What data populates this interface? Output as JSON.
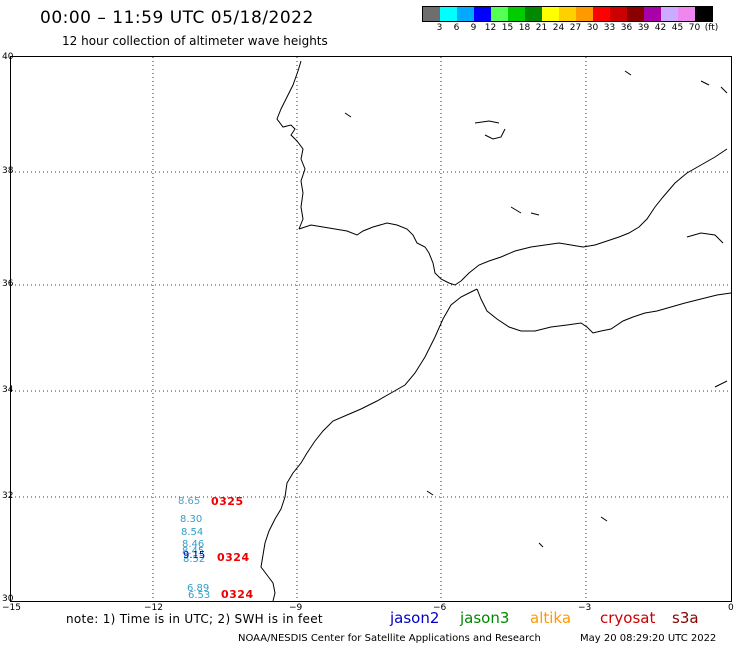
{
  "header": {
    "title": "00:00 – 11:59 UTC 05/18/2022",
    "subtitle": "12 hour collection of altimeter wave heights"
  },
  "colorbar": {
    "colors": [
      "#6e6e6e",
      "#00ffff",
      "#00aaff",
      "#0000ff",
      "#55ff55",
      "#00cc00",
      "#008800",
      "#ffff00",
      "#ffd000",
      "#ff9900",
      "#ff0000",
      "#cc0000",
      "#880000",
      "#aa00aa",
      "#ccaaff",
      "#ee88ee",
      "#000000"
    ],
    "labels": [
      "3",
      "6",
      "9",
      "12",
      "15",
      "18",
      "21",
      "24",
      "27",
      "30",
      "33",
      "36",
      "39",
      "42",
      "45",
      "70",
      "(ft)"
    ]
  },
  "axes": {
    "y_labels": [
      "40",
      "38",
      "36",
      "34",
      "32",
      "30"
    ],
    "x_labels": [
      "−15",
      "−12",
      "−9",
      "−6",
      "−3",
      "0"
    ]
  },
  "observations": {
    "jason3_values": [
      "8.65",
      "8.30",
      "8.54",
      "8.46",
      "8.45",
      "8.52",
      "6.89",
      "6.53"
    ],
    "jason2_value": "9.15",
    "cryosat_labels": [
      "0325",
      "0324",
      "0324"
    ]
  },
  "note": "note: 1) Time is in UTC; 2) SWH is in feet",
  "legend": [
    {
      "label": "jason2",
      "color": "#0000cc"
    },
    {
      "label": "jason3",
      "color": "#008800"
    },
    {
      "label": "altika",
      "color": "#ff9900"
    },
    {
      "label": "cryosat",
      "color": "#cc0000"
    },
    {
      "label": "s3a",
      "color": "#880000"
    }
  ],
  "footer": {
    "left": "NOAA/NESDIS Center for Satellite Applications and Research",
    "right": "May 20 08:29:20 UTC 2022"
  }
}
